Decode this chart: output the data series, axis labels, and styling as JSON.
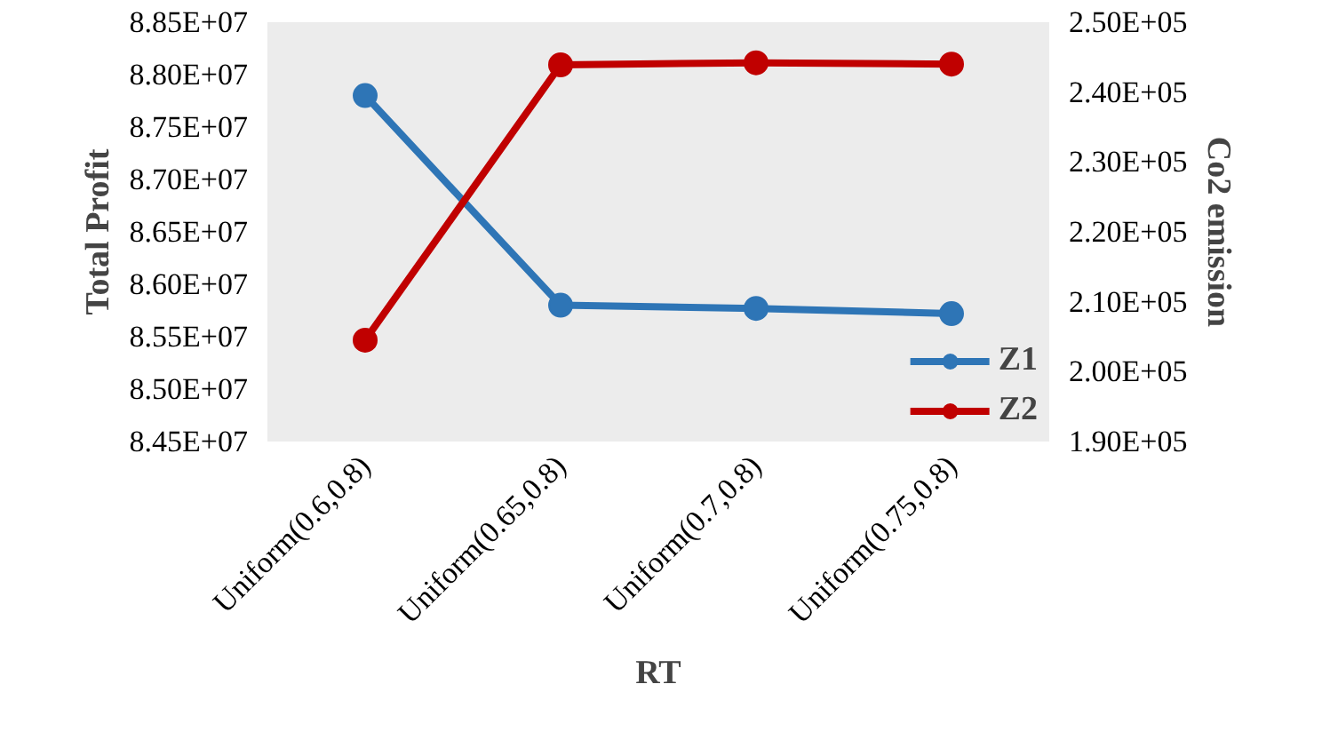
{
  "chart_data": {
    "type": "line",
    "xlabel": "RT",
    "ylabel": "Total Profit",
    "y2label": "Co2 emission",
    "categories": [
      "Uniform(0.6,0.8)",
      "Uniform(0.65,0.8)",
      "Uniform(0.7,0.8)",
      "Uniform(0.75,0.8)"
    ],
    "series": [
      {
        "name": "Z1",
        "color": "#2e75b6",
        "values": [
          87800000,
          85800000,
          85770000,
          85720000
        ]
      },
      {
        "name": "Z2",
        "color": "#c00000",
        "axis": "y2",
        "values": [
          204500,
          243900,
          244200,
          244000
        ]
      }
    ],
    "ylim": [
      84500000,
      88500000
    ],
    "yticks": [
      {
        "value": 84500000,
        "label": "8.45E+07"
      },
      {
        "value": 85000000,
        "label": "8.50E+07"
      },
      {
        "value": 85500000,
        "label": "8.55E+07"
      },
      {
        "value": 86000000,
        "label": "8.60E+07"
      },
      {
        "value": 86500000,
        "label": "8.65E+07"
      },
      {
        "value": 87000000,
        "label": "8.70E+07"
      },
      {
        "value": 87500000,
        "label": "8.75E+07"
      },
      {
        "value": 88000000,
        "label": "8.80E+07"
      },
      {
        "value": 88500000,
        "label": "8.85E+07"
      }
    ],
    "y2lim": [
      190000,
      250000
    ],
    "y2ticks": [
      {
        "value": 190000,
        "label": "1.90E+05"
      },
      {
        "value": 200000,
        "label": "2.00E+05"
      },
      {
        "value": 210000,
        "label": "2.10E+05"
      },
      {
        "value": 220000,
        "label": "2.20E+05"
      },
      {
        "value": 230000,
        "label": "2.30E+05"
      },
      {
        "value": 240000,
        "label": "2.40E+05"
      },
      {
        "value": 250000,
        "label": "2.50E+05"
      }
    ],
    "grid": false,
    "legend": "bottom right",
    "marker": "circle",
    "line_style": "solid"
  }
}
